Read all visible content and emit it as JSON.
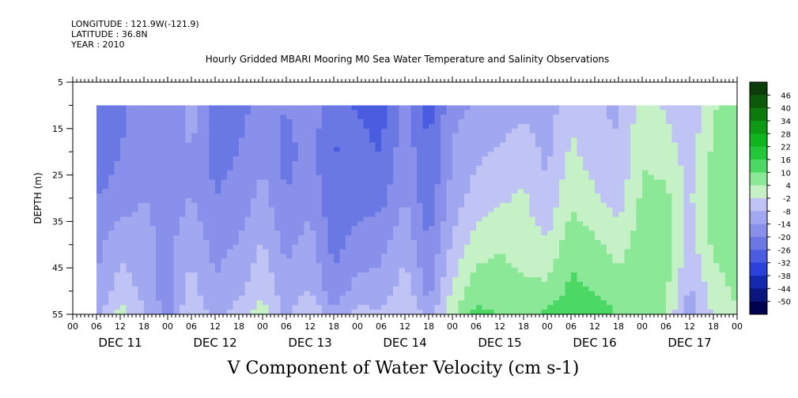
{
  "header": {
    "longitude": "LONGITUDE : 121.9W(-121.9)",
    "latitude": "LATITUDE : 36.8N",
    "year": "YEAR : 2010"
  },
  "chart_data": {
    "type": "heatmap",
    "title": "Hourly Gridded MBARI Mooring M0 Sea Water Temperature and Salinity Observations",
    "caption": "V Component of Water Velocity (cm s-1)",
    "ylabel": "DEPTH (m)",
    "ylim": [
      5,
      55
    ],
    "y_inverted": true,
    "y_ticks": [
      5,
      15,
      25,
      35,
      45,
      55
    ],
    "x_hour_ticks": [
      "00",
      "06",
      "12",
      "18",
      "00",
      "06",
      "12",
      "18",
      "00",
      "06",
      "12",
      "18",
      "00",
      "06",
      "12",
      "18",
      "00",
      "06",
      "12",
      "18",
      "00",
      "06",
      "12",
      "18",
      "00",
      "06",
      "12",
      "18",
      "00"
    ],
    "x_day_labels": [
      "DEC 11",
      "DEC 12",
      "DEC 13",
      "DEC 14",
      "DEC 15",
      "DEC 16",
      "DEC 17"
    ],
    "data_start_hour": 6,
    "data_end_hour": 168,
    "data_top_depth": 10,
    "colorbar": {
      "labels": [
        "46",
        "40",
        "34",
        "28",
        "22",
        "16",
        "10",
        "4",
        "-2",
        "-8",
        "-14",
        "-20",
        "-26",
        "-32",
        "-38",
        "-44",
        "-50"
      ],
      "colors": [
        "#0a3d0a",
        "#0b5a0b",
        "#0c7a0c",
        "#0e9a14",
        "#10b41e",
        "#22c83a",
        "#4cd864",
        "#8ae896",
        "#c6f0c6",
        "#c0c4f4",
        "#a2a8f0",
        "#8890ea",
        "#6a78e4",
        "#4a5ce0",
        "#2a40d8",
        "#1428b0",
        "#0a1680",
        "#000050"
      ],
      "vmin": -50,
      "vmax": 52
    },
    "profile_hours": [
      6,
      12,
      18,
      24,
      30,
      36,
      42,
      48,
      54,
      60,
      66,
      72,
      78,
      84,
      90,
      96,
      102,
      108,
      114,
      120,
      126,
      132,
      138,
      144,
      150,
      156,
      162,
      168
    ],
    "profile_depths": [
      10,
      20,
      30,
      40,
      50,
      55
    ],
    "values": [
      [
        -22,
        -20,
        -16,
        -12,
        -10,
        -8
      ],
      [
        -18,
        -16,
        -14,
        -6,
        -2,
        4
      ],
      [
        -10,
        -12,
        -10,
        -8,
        -6,
        -4
      ],
      [
        -14,
        -16,
        -14,
        -12,
        -14,
        -12
      ],
      [
        -8,
        -10,
        -10,
        -6,
        -2,
        2
      ],
      [
        -20,
        -18,
        -16,
        -12,
        -10,
        -8
      ],
      [
        -18,
        -16,
        -14,
        -10,
        -6,
        -2
      ],
      [
        -14,
        -12,
        -8,
        -4,
        0,
        4
      ],
      [
        -16,
        -18,
        -16,
        -12,
        -8,
        -6
      ],
      [
        -12,
        -14,
        -12,
        -8,
        -4,
        2
      ],
      [
        -20,
        -22,
        -20,
        -18,
        -14,
        -10
      ],
      [
        -22,
        -20,
        -18,
        -14,
        -8,
        -2
      ],
      [
        -24,
        -22,
        -18,
        -12,
        -8,
        -4
      ],
      [
        -14,
        -12,
        -10,
        -6,
        -2,
        2
      ],
      [
        -24,
        -22,
        -20,
        -16,
        -12,
        -8
      ],
      [
        -12,
        -10,
        -8,
        -4,
        2,
        6
      ],
      [
        -10,
        -6,
        -2,
        4,
        10,
        14
      ],
      [
        -8,
        -4,
        0,
        6,
        10,
        12
      ],
      [
        -6,
        -2,
        2,
        4,
        8,
        10
      ],
      [
        -8,
        -6,
        -4,
        2,
        8,
        14
      ],
      [
        0,
        2,
        6,
        10,
        14,
        16
      ],
      [
        -4,
        -2,
        2,
        8,
        12,
        16
      ],
      [
        -6,
        -4,
        -2,
        4,
        10,
        12
      ],
      [
        4,
        6,
        8,
        10,
        10,
        12
      ],
      [
        0,
        4,
        8,
        10,
        8,
        6
      ],
      [
        -4,
        -2,
        0,
        -2,
        -6,
        -8
      ],
      [
        6,
        8,
        10,
        8,
        4,
        2
      ],
      [
        10,
        12,
        12,
        10,
        8,
        6
      ]
    ]
  }
}
